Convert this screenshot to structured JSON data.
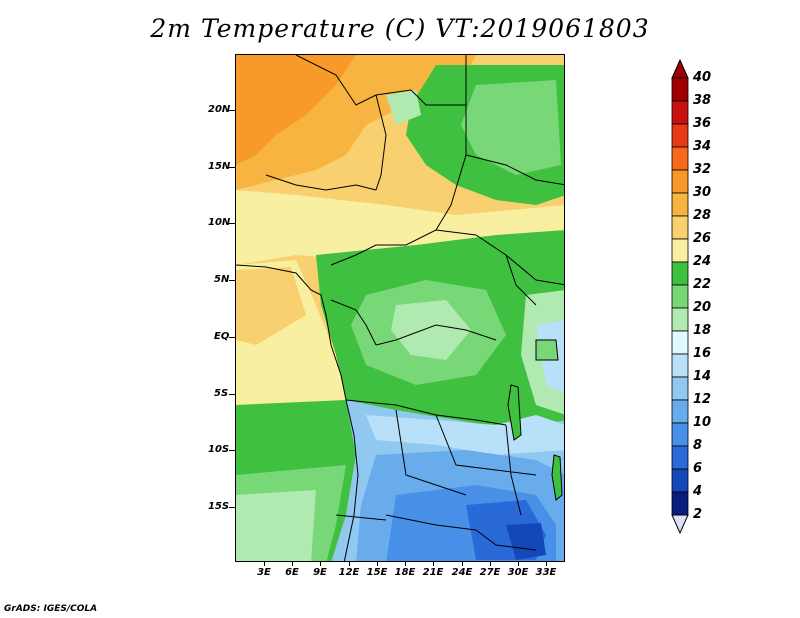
{
  "title": "2m Temperature (C) VT:2019061803",
  "footer": "GrADS: IGES/COLA",
  "map": {
    "lat_labels": [
      "20N",
      "15N",
      "10N",
      "5N",
      "EQ",
      "5S",
      "10S",
      "15S"
    ],
    "lon_labels": [
      "3E",
      "6E",
      "9E",
      "12E",
      "15E",
      "18E",
      "21E",
      "24E",
      "27E",
      "30E",
      "33E"
    ]
  },
  "colorbar": {
    "levels": [
      "40",
      "38",
      "36",
      "34",
      "32",
      "30",
      "28",
      "26",
      "24",
      "22",
      "20",
      "18",
      "16",
      "14",
      "12",
      "10",
      "8",
      "6",
      "4",
      "2"
    ],
    "colors": [
      "#a00000",
      "#c81010",
      "#e83a14",
      "#f86a1a",
      "#f89a2a",
      "#f8b440",
      "#f8d070",
      "#f8f0a0",
      "#40c040",
      "#78d878",
      "#b0eab0",
      "#e0f8ff",
      "#b8e0f8",
      "#90c8f0",
      "#68acec",
      "#4890e8",
      "#2a6ad8",
      "#1448b8",
      "#0a1e80"
    ],
    "top_color": "#a00000",
    "bottom_color": "#e0e0f8"
  }
}
